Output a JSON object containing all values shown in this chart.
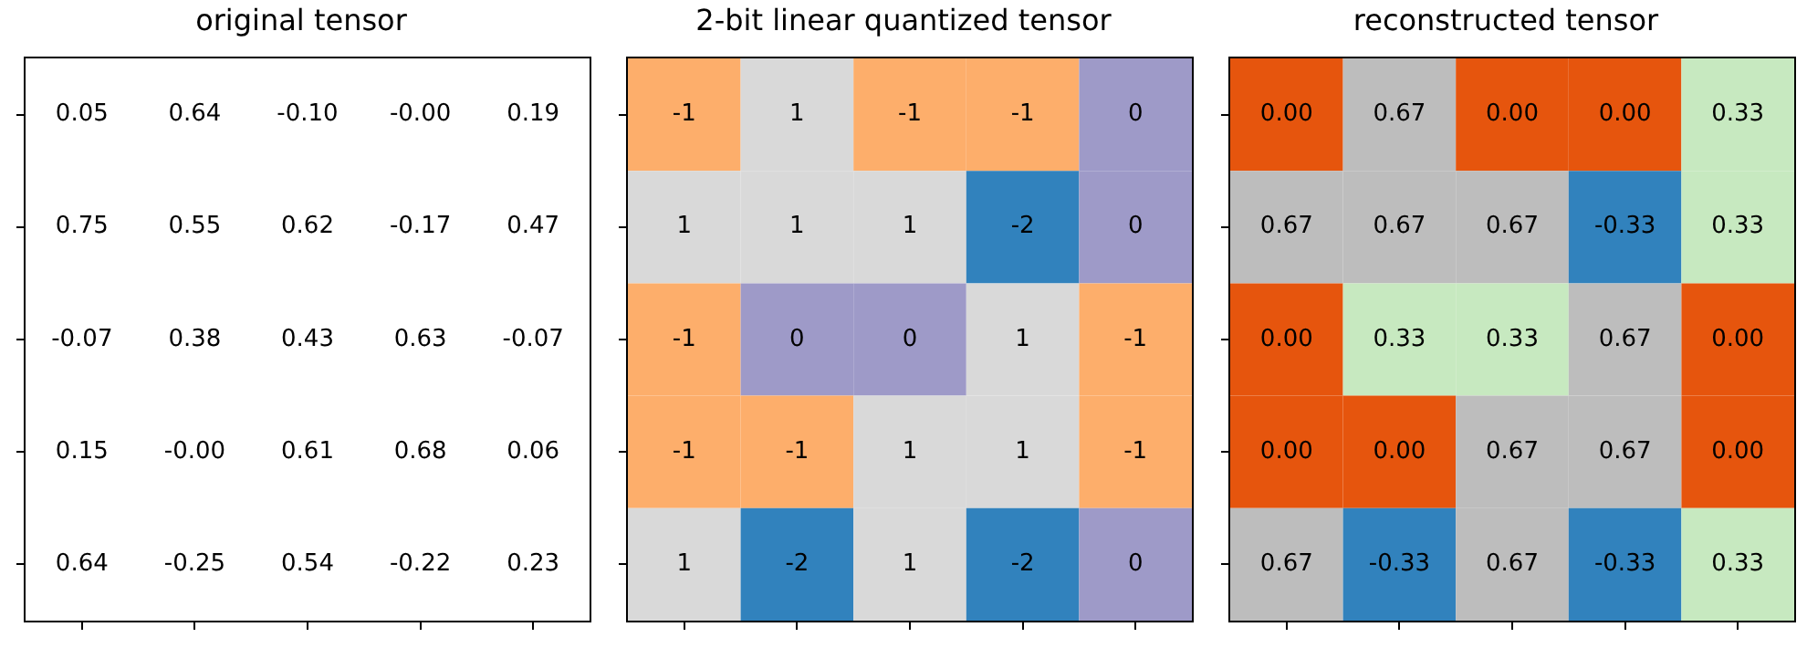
{
  "chart_data": [
    {
      "type": "heatmap",
      "title": "original tensor",
      "categories": [
        null,
        null,
        null,
        null,
        null
      ],
      "y_categories": [
        null,
        null,
        null,
        null,
        null
      ],
      "cells": [
        [
          0.05,
          0.64,
          -0.1,
          -0.0,
          0.19
        ],
        [
          0.75,
          0.55,
          0.62,
          -0.17,
          0.47
        ],
        [
          -0.07,
          0.38,
          0.43,
          0.63,
          -0.07
        ],
        [
          0.15,
          -0.0,
          0.61,
          0.68,
          0.06
        ],
        [
          0.64,
          -0.25,
          0.54,
          -0.22,
          0.23
        ]
      ],
      "cell_labels": [
        [
          "0.05",
          "0.64",
          "-0.10",
          "-0.00",
          "0.19"
        ],
        [
          "0.75",
          "0.55",
          "0.62",
          "-0.17",
          "0.47"
        ],
        [
          "-0.07",
          "0.38",
          "0.43",
          "0.63",
          "-0.07"
        ],
        [
          "0.15",
          "-0.00",
          "0.61",
          "0.68",
          "0.06"
        ],
        [
          "0.64",
          "-0.25",
          "0.54",
          "-0.22",
          "0.23"
        ]
      ],
      "colors": [
        [
          "#ffffff",
          "#ffffff",
          "#ffffff",
          "#ffffff",
          "#ffffff"
        ],
        [
          "#ffffff",
          "#ffffff",
          "#ffffff",
          "#ffffff",
          "#ffffff"
        ],
        [
          "#ffffff",
          "#ffffff",
          "#ffffff",
          "#ffffff",
          "#ffffff"
        ],
        [
          "#ffffff",
          "#ffffff",
          "#ffffff",
          "#ffffff",
          "#ffffff"
        ],
        [
          "#ffffff",
          "#ffffff",
          "#ffffff",
          "#ffffff",
          "#ffffff"
        ]
      ]
    },
    {
      "type": "heatmap",
      "title": "2-bit linear quantized tensor",
      "categories": [
        null,
        null,
        null,
        null,
        null
      ],
      "y_categories": [
        null,
        null,
        null,
        null,
        null
      ],
      "data_labels": true,
      "cells": [
        [
          -1,
          1,
          -1,
          -1,
          0
        ],
        [
          1,
          1,
          1,
          -2,
          0
        ],
        [
          -1,
          0,
          0,
          1,
          -1
        ],
        [
          -1,
          -1,
          1,
          1,
          -1
        ],
        [
          1,
          -2,
          1,
          -2,
          0
        ]
      ],
      "colors": [
        [
          "#fdae6b",
          "#d9d9d9",
          "#fdae6b",
          "#fdae6b",
          "#9e9ac8"
        ],
        [
          "#d9d9d9",
          "#d9d9d9",
          "#d9d9d9",
          "#3182bd",
          "#9e9ac8"
        ],
        [
          "#fdae6b",
          "#9e9ac8",
          "#9e9ac8",
          "#d9d9d9",
          "#fdae6b"
        ],
        [
          "#fdae6b",
          "#fdae6b",
          "#d9d9d9",
          "#d9d9d9",
          "#fdae6b"
        ],
        [
          "#d9d9d9",
          "#3182bd",
          "#d9d9d9",
          "#3182bd",
          "#9e9ac8"
        ]
      ]
    },
    {
      "type": "heatmap",
      "title": "reconstructed tensor",
      "categories": [
        null,
        null,
        null,
        null,
        null
      ],
      "y_categories": [
        null,
        null,
        null,
        null,
        null
      ],
      "cells": [
        [
          0.0,
          0.67,
          0.0,
          0.0,
          0.33
        ],
        [
          0.67,
          0.67,
          0.67,
          -0.33,
          0.33
        ],
        [
          0.0,
          0.33,
          0.33,
          0.67,
          0.0
        ],
        [
          0.0,
          0.0,
          0.67,
          0.67,
          0.0
        ],
        [
          0.67,
          -0.33,
          0.67,
          -0.33,
          0.33
        ]
      ],
      "cell_labels": [
        [
          "0.00",
          "0.67",
          "0.00",
          "0.00",
          "0.33"
        ],
        [
          "0.67",
          "0.67",
          "0.67",
          "-0.33",
          "0.33"
        ],
        [
          "0.00",
          "0.33",
          "0.33",
          "0.67",
          "0.00"
        ],
        [
          "0.00",
          "0.00",
          "0.67",
          "0.67",
          "0.00"
        ],
        [
          "0.67",
          "-0.33",
          "0.67",
          "-0.33",
          "0.33"
        ]
      ],
      "colors": [
        [
          "#e6550d",
          "#bdbdbd",
          "#e6550d",
          "#e6550d",
          "#c7e9c0"
        ],
        [
          "#bdbdbd",
          "#bdbdbd",
          "#bdbdbd",
          "#3182bd",
          "#c7e9c0"
        ],
        [
          "#e6550d",
          "#c7e9c0",
          "#c7e9c0",
          "#bdbdbd",
          "#e6550d"
        ],
        [
          "#e6550d",
          "#e6550d",
          "#bdbdbd",
          "#bdbdbd",
          "#e6550d"
        ],
        [
          "#bdbdbd",
          "#3182bd",
          "#bdbdbd",
          "#3182bd",
          "#c7e9c0"
        ]
      ]
    }
  ]
}
